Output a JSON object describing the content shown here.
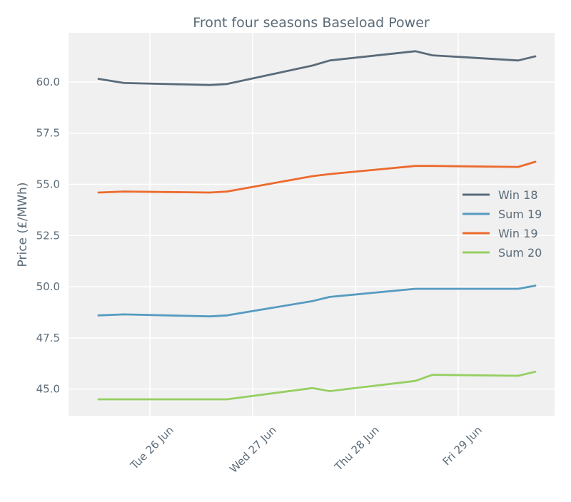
{
  "chart_data": {
    "type": "line",
    "title": "Front four seasons Baseload Power",
    "xlabel": "",
    "ylabel": "Price (£/MWh)",
    "x": [
      "2018-06-25T12:00",
      "2018-06-25T18:00",
      "2018-06-26T14:00",
      "2018-06-26T18:00",
      "2018-06-27T14:00",
      "2018-06-27T18:00",
      "2018-06-28T14:00",
      "2018-06-28T18:00",
      "2018-06-29T14:00",
      "2018-06-29T18:00"
    ],
    "x_ticks": [
      "Tue 26 Jun",
      "Wed 27 Jun",
      "Thu 28 Jun",
      "Fri 29 Jun"
    ],
    "x_tick_dates": [
      "2018-06-26T00:00",
      "2018-06-27T00:00",
      "2018-06-28T00:00",
      "2018-06-29T00:00"
    ],
    "xlim": [
      "2018-06-25T05:00",
      "2018-06-29T22:30"
    ],
    "ylim": [
      43.7,
      62.4
    ],
    "y_ticks": [
      45.0,
      47.5,
      50.0,
      52.5,
      55.0,
      57.5,
      60.0
    ],
    "grid": true,
    "legend_position": "right",
    "series": [
      {
        "name": "Win 18",
        "color": "#5a6b7a",
        "values": [
          60.15,
          59.95,
          59.85,
          59.9,
          60.8,
          61.05,
          61.5,
          61.3,
          61.05,
          61.25
        ]
      },
      {
        "name": "Sum 19",
        "color": "#569bc0",
        "values": [
          48.6,
          48.65,
          48.55,
          48.6,
          49.3,
          49.5,
          49.9,
          49.9,
          49.9,
          50.05
        ]
      },
      {
        "name": "Win 19",
        "color": "#ec6a2e",
        "values": [
          54.6,
          54.65,
          54.6,
          54.65,
          55.4,
          55.5,
          55.9,
          55.9,
          55.85,
          56.1
        ]
      },
      {
        "name": "Sum 20",
        "color": "#96cf62",
        "values": [
          44.5,
          44.5,
          44.5,
          44.5,
          45.05,
          44.9,
          45.4,
          45.7,
          45.65,
          45.85
        ]
      }
    ]
  }
}
